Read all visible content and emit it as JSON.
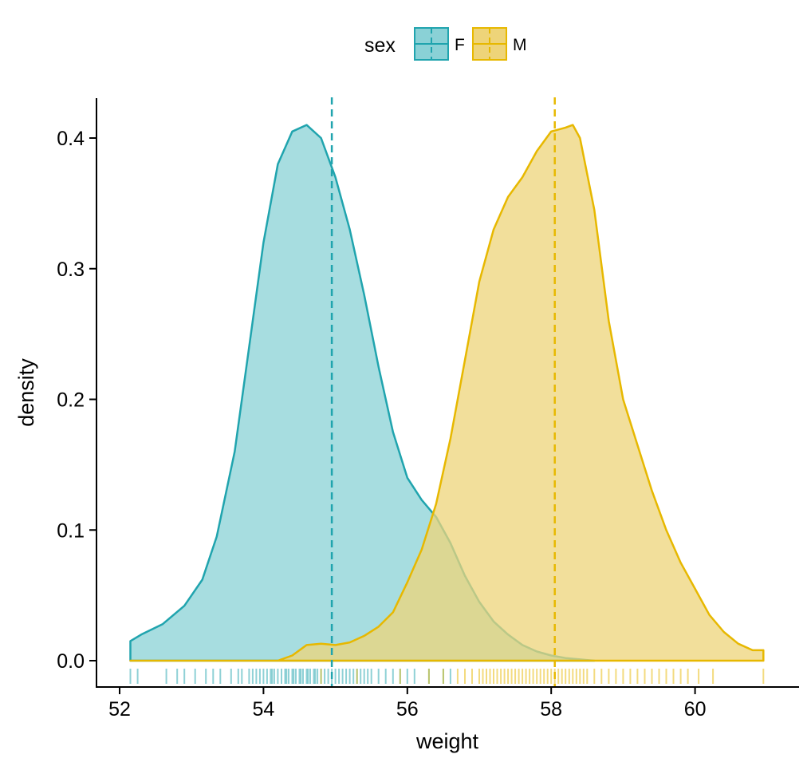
{
  "chart_data": {
    "type": "area",
    "title": "",
    "xlabel": "weight",
    "ylabel": "density",
    "xlim": [
      52.0,
      61.4
    ],
    "ylim": [
      -0.02,
      0.43
    ],
    "x_ticks": [
      52,
      54,
      56,
      58,
      60
    ],
    "x_tick_labels": [
      "52",
      "54",
      "56",
      "58",
      "60"
    ],
    "y_ticks": [
      0.0,
      0.1,
      0.2,
      0.3,
      0.4
    ],
    "y_tick_labels": [
      "0.0",
      "0.1",
      "0.2",
      "0.3",
      "0.4"
    ],
    "grid": false,
    "legend": {
      "title": "sex",
      "position": "top",
      "entries": [
        "F",
        "M"
      ]
    },
    "series": [
      {
        "name": "F",
        "color": "#20A4AE",
        "fill": "#8AD1D6",
        "mean": 54.95,
        "x": [
          52.15,
          52.3,
          52.6,
          52.9,
          53.15,
          53.35,
          53.6,
          53.8,
          54.0,
          54.2,
          54.4,
          54.6,
          54.8,
          55.0,
          55.2,
          55.4,
          55.6,
          55.8,
          56.0,
          56.2,
          56.4,
          56.6,
          56.8,
          57.0,
          57.2,
          57.4,
          57.6,
          57.8,
          58.0,
          58.2,
          58.4,
          58.6
        ],
        "y": [
          0.015,
          0.02,
          0.028,
          0.042,
          0.062,
          0.095,
          0.16,
          0.24,
          0.32,
          0.38,
          0.405,
          0.41,
          0.4,
          0.37,
          0.33,
          0.28,
          0.225,
          0.175,
          0.14,
          0.123,
          0.11,
          0.09,
          0.065,
          0.045,
          0.03,
          0.02,
          0.012,
          0.007,
          0.004,
          0.002,
          0.001,
          0.0
        ]
      },
      {
        "name": "M",
        "color": "#E7B800",
        "fill": "#EED479",
        "mean": 58.05,
        "x": [
          52.15,
          54.2,
          54.4,
          54.6,
          54.8,
          55.0,
          55.2,
          55.4,
          55.6,
          55.8,
          56.0,
          56.2,
          56.4,
          56.6,
          56.8,
          57.0,
          57.2,
          57.4,
          57.6,
          57.8,
          58.0,
          58.2,
          58.3,
          58.4,
          58.6,
          58.8,
          59.0,
          59.2,
          59.4,
          59.6,
          59.8,
          60.0,
          60.2,
          60.4,
          60.6,
          60.8,
          60.95,
          60.95
        ],
        "y": [
          0.0,
          0.0,
          0.004,
          0.012,
          0.013,
          0.012,
          0.014,
          0.019,
          0.026,
          0.037,
          0.06,
          0.085,
          0.12,
          0.17,
          0.23,
          0.29,
          0.33,
          0.355,
          0.37,
          0.39,
          0.405,
          0.408,
          0.41,
          0.4,
          0.345,
          0.26,
          0.2,
          0.165,
          0.13,
          0.1,
          0.075,
          0.055,
          0.035,
          0.022,
          0.013,
          0.008,
          0.008,
          0.0
        ]
      }
    ],
    "rug": {
      "F": [
        52.15,
        52.25,
        52.65,
        52.8,
        52.9,
        53.05,
        53.2,
        53.3,
        53.4,
        53.55,
        53.65,
        53.7,
        53.8,
        53.85,
        53.9,
        53.95,
        54.0,
        54.05,
        54.1,
        54.12,
        54.15,
        54.2,
        54.25,
        54.3,
        54.32,
        54.35,
        54.4,
        54.42,
        54.45,
        54.5,
        54.52,
        54.55,
        54.6,
        54.62,
        54.65,
        54.7,
        54.72,
        54.75,
        54.8,
        54.85,
        54.9,
        54.95,
        55.0,
        55.05,
        55.1,
        55.15,
        55.2,
        55.25,
        55.3,
        55.35,
        55.4,
        55.45,
        55.5,
        55.6,
        55.7,
        55.8,
        55.9,
        56.0,
        56.1,
        56.3,
        56.5,
        56.6
      ],
      "M": [
        54.8,
        55.3,
        55.9,
        56.3,
        56.5,
        56.7,
        56.8,
        56.9,
        57.0,
        57.05,
        57.1,
        57.15,
        57.2,
        57.25,
        57.3,
        57.35,
        57.4,
        57.45,
        57.5,
        57.55,
        57.6,
        57.65,
        57.7,
        57.75,
        57.8,
        57.85,
        57.9,
        57.95,
        58.0,
        58.05,
        58.1,
        58.15,
        58.2,
        58.25,
        58.3,
        58.35,
        58.4,
        58.45,
        58.5,
        58.6,
        58.7,
        58.8,
        58.9,
        59.0,
        59.1,
        59.2,
        59.3,
        59.4,
        59.5,
        59.6,
        59.7,
        59.8,
        59.9,
        60.05,
        60.25,
        60.95
      ]
    }
  }
}
